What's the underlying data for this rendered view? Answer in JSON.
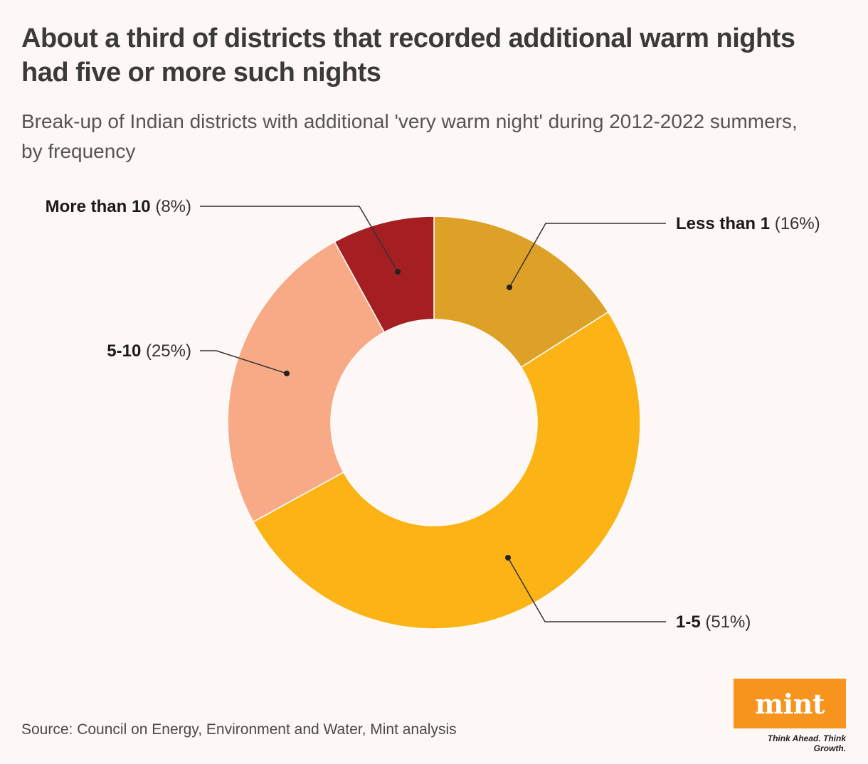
{
  "title": "About a third of districts that recorded additional warm nights had five or more such nights",
  "subtitle": "Break-up of Indian districts with additional 'very warm night' during 2012-2022 summers, by frequency",
  "source": "Source: Council on Energy, Environment and Water, Mint analysis",
  "logo": {
    "text": "mint",
    "tagline": "Think Ahead. Think Growth."
  },
  "colors": {
    "background": "#fdf7f5",
    "less_than_1": "#dea127",
    "one_to_five": "#fbb316",
    "five_to_ten": "#f7aa85",
    "more_than_10": "#a41e22",
    "logo": "#f7941d"
  },
  "chart_data": {
    "type": "pie",
    "subtype": "donut",
    "title": "About a third of districts that recorded additional warm nights had five or more such nights",
    "categories": [
      "Less than 1",
      "1-5",
      "5-10",
      "More than 10"
    ],
    "values": [
      16,
      51,
      25,
      8
    ],
    "labels": [
      "(16%)",
      "(51%)",
      "(25%)",
      "(8%)"
    ],
    "unit": "%",
    "start": "12 o'clock",
    "direction": "clockwise"
  }
}
